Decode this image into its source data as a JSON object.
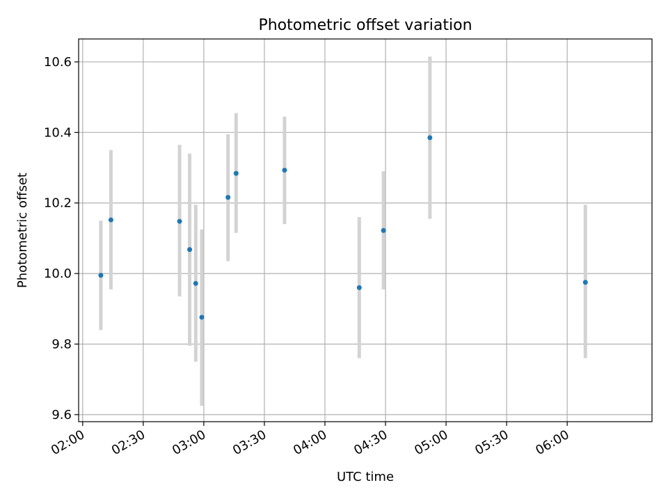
{
  "chart_data": {
    "type": "scatter",
    "title": "Photometric offset variation",
    "xlabel": "UTC time",
    "ylabel": "Photometric offset",
    "xlim": [
      "01:58",
      "06:42"
    ],
    "ylim": [
      9.58,
      10.665
    ],
    "x_ticks": [
      "02:00",
      "02:30",
      "03:00",
      "03:30",
      "04:00",
      "04:30",
      "05:00",
      "05:30",
      "06:00"
    ],
    "y_ticks": [
      "9.6",
      "9.8",
      "10.0",
      "10.2",
      "10.4",
      "10.6"
    ],
    "grid": true,
    "points": [
      {
        "x": "02:09",
        "y": 9.995,
        "err_low": 9.84,
        "err_high": 10.15
      },
      {
        "x": "02:14",
        "y": 10.152,
        "err_low": 9.955,
        "err_high": 10.35
      },
      {
        "x": "02:48",
        "y": 10.148,
        "err_low": 9.935,
        "err_high": 10.365
      },
      {
        "x": "02:53",
        "y": 10.068,
        "err_low": 9.795,
        "err_high": 10.34
      },
      {
        "x": "02:56",
        "y": 9.972,
        "err_low": 9.75,
        "err_high": 10.195
      },
      {
        "x": "02:59",
        "y": 9.876,
        "err_low": 9.625,
        "err_high": 10.125
      },
      {
        "x": "03:12",
        "y": 10.216,
        "err_low": 10.035,
        "err_high": 10.395
      },
      {
        "x": "03:16",
        "y": 10.284,
        "err_low": 10.115,
        "err_high": 10.455
      },
      {
        "x": "03:40",
        "y": 10.293,
        "err_low": 10.14,
        "err_high": 10.445
      },
      {
        "x": "04:17",
        "y": 9.96,
        "err_low": 9.76,
        "err_high": 10.16
      },
      {
        "x": "04:29",
        "y": 10.122,
        "err_low": 9.955,
        "err_high": 10.29
      },
      {
        "x": "04:52",
        "y": 10.385,
        "err_low": 10.155,
        "err_high": 10.615
      },
      {
        "x": "06:09",
        "y": 9.975,
        "err_low": 9.76,
        "err_high": 10.195
      }
    ],
    "colors": {
      "point": "#1f77b4",
      "errorbar": "#d3d3d3",
      "grid": "#b0b0b0"
    }
  }
}
